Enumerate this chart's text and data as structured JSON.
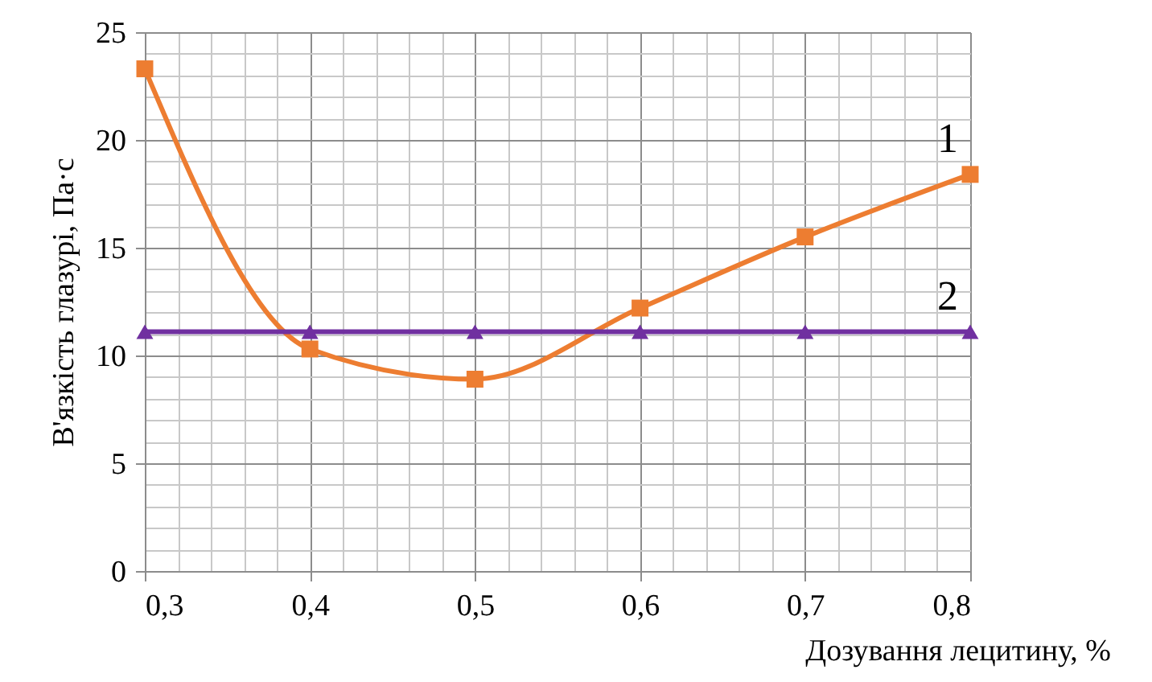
{
  "chart_data": {
    "type": "line",
    "xlabel": "Дозування лецитину, %",
    "ylabel": "В'язкість глазурі, Па·с",
    "x": [
      0.3,
      0.4,
      0.5,
      0.6,
      0.7,
      0.8
    ],
    "series": [
      {
        "name": "1",
        "color": "#ed7d31",
        "marker": "square",
        "values": [
          23.3,
          10.3,
          8.9,
          12.2,
          15.5,
          18.4
        ]
      },
      {
        "name": "2",
        "color": "#7030a0",
        "marker": "triangle",
        "values": [
          11.1,
          11.1,
          11.1,
          11.1,
          11.1,
          11.1
        ]
      }
    ],
    "xlim": [
      0.3,
      0.8
    ],
    "ylim": [
      0,
      25
    ],
    "xticks": [
      {
        "value": 0.3,
        "label": "0,3"
      },
      {
        "value": 0.32,
        "label": null
      },
      {
        "value": 0.34,
        "label": null
      },
      {
        "value": 0.36,
        "label": null
      },
      {
        "value": 0.38,
        "label": null
      },
      {
        "value": 0.4,
        "label": "0,4"
      },
      {
        "value": 0.42,
        "label": null
      },
      {
        "value": 0.44,
        "label": null
      },
      {
        "value": 0.46,
        "label": null
      },
      {
        "value": 0.48,
        "label": null
      },
      {
        "value": 0.5,
        "label": "0,5"
      },
      {
        "value": 0.52,
        "label": null
      },
      {
        "value": 0.54,
        "label": null
      },
      {
        "value": 0.56,
        "label": null
      },
      {
        "value": 0.58,
        "label": null
      },
      {
        "value": 0.6,
        "label": "0,6"
      },
      {
        "value": 0.62,
        "label": null
      },
      {
        "value": 0.64,
        "label": null
      },
      {
        "value": 0.66,
        "label": null
      },
      {
        "value": 0.68,
        "label": null
      },
      {
        "value": 0.7,
        "label": "0,7"
      },
      {
        "value": 0.72,
        "label": null
      },
      {
        "value": 0.74,
        "label": null
      },
      {
        "value": 0.76,
        "label": null
      },
      {
        "value": 0.78,
        "label": null
      },
      {
        "value": 0.8,
        "label": "0,8"
      }
    ],
    "yticks": [
      0,
      {
        "value": 1,
        "label": null
      },
      {
        "value": 2,
        "label": null
      },
      {
        "value": 3,
        "label": null
      },
      {
        "value": 4,
        "label": null
      },
      5,
      {
        "value": 6,
        "label": null
      },
      {
        "value": 7,
        "label": null
      },
      {
        "value": 8,
        "label": null
      },
      {
        "value": 9,
        "label": null
      },
      10,
      {
        "value": 11,
        "label": null
      },
      {
        "value": 12,
        "label": null
      },
      {
        "value": 13,
        "label": null
      },
      {
        "value": 14,
        "label": null
      },
      15,
      {
        "value": 16,
        "label": null
      },
      {
        "value": 17,
        "label": null
      },
      {
        "value": 18,
        "label": null
      },
      {
        "value": 19,
        "label": null
      },
      20,
      {
        "value": 21,
        "label": null
      },
      {
        "value": 22,
        "label": null
      },
      {
        "value": 23,
        "label": null
      },
      {
        "value": 24,
        "label": null
      },
      25
    ],
    "grid": true
  }
}
